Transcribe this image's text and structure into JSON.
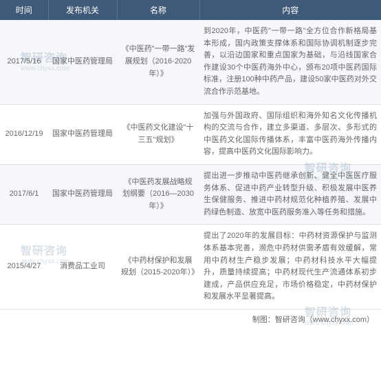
{
  "header": {
    "time": "时间",
    "agency": "发布机关",
    "name": "名称",
    "content": "内容"
  },
  "rows": [
    {
      "time": "2017/5/16",
      "agency": "国家中医药管理局",
      "name": "《中医药\"一带一路\"发展规划（2016-2020年）》",
      "content": "到2020年，中医药\"一带一路\"全方位合作新格局基本形成，国内政策支撑体系和国际协调机制逐步完善，以沿边国家和重点国家为基础，与沿线国家合作建设30个中医药海外中心，颁布20项中医药国际标准，注册100种中药产品，建设50家中医药对外交流合作示范基地。"
    },
    {
      "time": "2016/12/19",
      "agency": "国家中医药管理局",
      "name": "《中医药文化建设\"十三五\"规划》",
      "content": "加强与外国政府、国际组织和海外知名文化传播机构的交流与合作，建立多渠道、多层次、多形式的中医药文化国际传播体系，丰富中医药海外传播内容，提高中医药文化国际影响力。"
    },
    {
      "time": "2017/6/1",
      "agency": "国家中医药管理局",
      "name": "《中医药发展战略规划纲要（2016—2030年）》",
      "content": "提出进一步推动中医药继承创新、健全中医医疗服务体系、促进中药产业转型升级、积极发展中医养生保健服务、推进中药材规范化种植养殖、发展中药绿色制造、放宽中医药服务准入等任务和措施。"
    },
    {
      "time": "2015/4/27",
      "agency": "消费品工业司",
      "name": "《中药材保护和发展规划（2015-2020年）》",
      "content": "提出了2020年的发展目标：中药材资源保护与监测体系基本完善，濒危中药材供需矛盾有效缓解，常用中药材生产稳步发展；中药材科技水平大幅提升，质量持续提高；中药材现代生产流通体系初步建成，产品供应充足，市场价格稳定，中药材保护和发展水平显著提高。"
    }
  ],
  "footer": "制图：智研咨询（www.chyxx.com）",
  "watermark": {
    "brand": "智研咨询",
    "url": "www.chyxx.com"
  },
  "colors": {
    "header_bg": "#3f5a78",
    "header_text": "#ffffff",
    "row_odd": "#f5f7fa",
    "row_even": "#ffffff",
    "text": "#666666",
    "border": "#e0e0e0"
  }
}
